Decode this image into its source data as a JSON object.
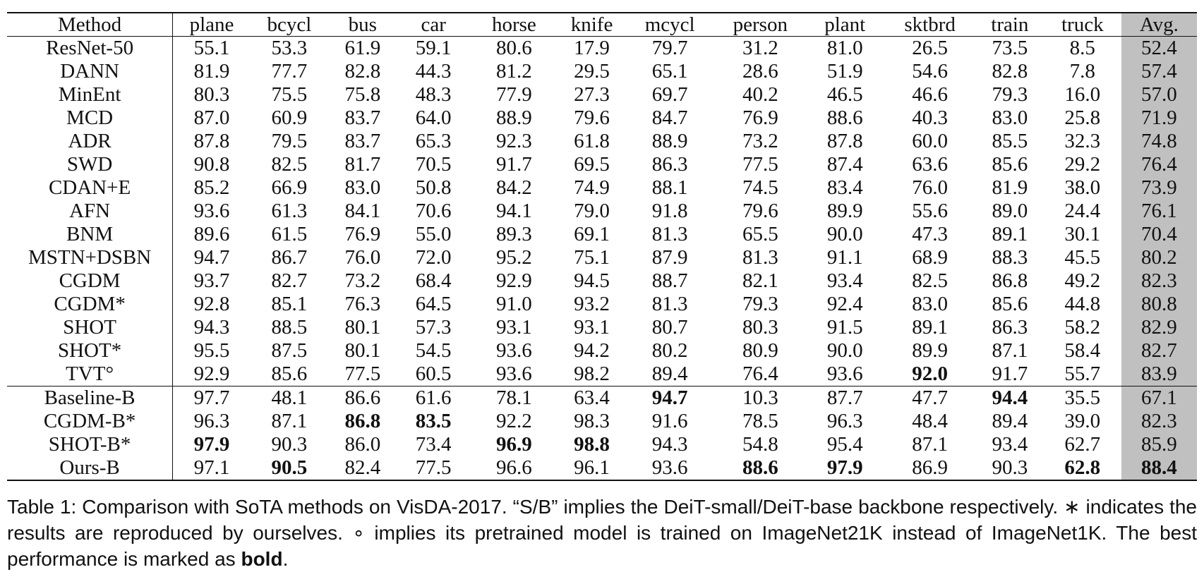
{
  "table": {
    "columns": [
      "Method",
      "plane",
      "bcycl",
      "bus",
      "car",
      "horse",
      "knife",
      "mcycl",
      "person",
      "plant",
      "sktbrd",
      "train",
      "truck",
      "Avg."
    ],
    "groups": [
      {
        "rows": [
          {
            "method": "ResNet-50",
            "values": [
              "55.1",
              "53.3",
              "61.9",
              "59.1",
              "80.6",
              "17.9",
              "79.7",
              "31.2",
              "81.0",
              "26.5",
              "73.5",
              "8.5",
              "52.4"
            ],
            "bold": []
          },
          {
            "method": "DANN",
            "values": [
              "81.9",
              "77.7",
              "82.8",
              "44.3",
              "81.2",
              "29.5",
              "65.1",
              "28.6",
              "51.9",
              "54.6",
              "82.8",
              "7.8",
              "57.4"
            ],
            "bold": []
          },
          {
            "method": "MinEnt",
            "values": [
              "80.3",
              "75.5",
              "75.8",
              "48.3",
              "77.9",
              "27.3",
              "69.7",
              "40.2",
              "46.5",
              "46.6",
              "79.3",
              "16.0",
              "57.0"
            ],
            "bold": []
          },
          {
            "method": "MCD",
            "values": [
              "87.0",
              "60.9",
              "83.7",
              "64.0",
              "88.9",
              "79.6",
              "84.7",
              "76.9",
              "88.6",
              "40.3",
              "83.0",
              "25.8",
              "71.9"
            ],
            "bold": []
          },
          {
            "method": "ADR",
            "values": [
              "87.8",
              "79.5",
              "83.7",
              "65.3",
              "92.3",
              "61.8",
              "88.9",
              "73.2",
              "87.8",
              "60.0",
              "85.5",
              "32.3",
              "74.8"
            ],
            "bold": []
          },
          {
            "method": "SWD",
            "values": [
              "90.8",
              "82.5",
              "81.7",
              "70.5",
              "91.7",
              "69.5",
              "86.3",
              "77.5",
              "87.4",
              "63.6",
              "85.6",
              "29.2",
              "76.4"
            ],
            "bold": []
          },
          {
            "method": "CDAN+E",
            "values": [
              "85.2",
              "66.9",
              "83.0",
              "50.8",
              "84.2",
              "74.9",
              "88.1",
              "74.5",
              "83.4",
              "76.0",
              "81.9",
              "38.0",
              "73.9"
            ],
            "bold": []
          },
          {
            "method": "AFN",
            "values": [
              "93.6",
              "61.3",
              "84.1",
              "70.6",
              "94.1",
              "79.0",
              "91.8",
              "79.6",
              "89.9",
              "55.6",
              "89.0",
              "24.4",
              "76.1"
            ],
            "bold": []
          },
          {
            "method": "BNM",
            "values": [
              "89.6",
              "61.5",
              "76.9",
              "55.0",
              "89.3",
              "69.1",
              "81.3",
              "65.5",
              "90.0",
              "47.3",
              "89.1",
              "30.1",
              "70.4"
            ],
            "bold": []
          },
          {
            "method": "MSTN+DSBN",
            "values": [
              "94.7",
              "86.7",
              "76.0",
              "72.0",
              "95.2",
              "75.1",
              "87.9",
              "81.3",
              "91.1",
              "68.9",
              "88.3",
              "45.5",
              "80.2"
            ],
            "bold": []
          },
          {
            "method": "CGDM",
            "values": [
              "93.7",
              "82.7",
              "73.2",
              "68.4",
              "92.9",
              "94.5",
              "88.7",
              "82.1",
              "93.4",
              "82.5",
              "86.8",
              "49.2",
              "82.3"
            ],
            "bold": []
          },
          {
            "method": "CGDM*",
            "values": [
              "92.8",
              "85.1",
              "76.3",
              "64.5",
              "91.0",
              "93.2",
              "81.3",
              "79.3",
              "92.4",
              "83.0",
              "85.6",
              "44.8",
              "80.8"
            ],
            "bold": []
          },
          {
            "method": "SHOT",
            "values": [
              "94.3",
              "88.5",
              "80.1",
              "57.3",
              "93.1",
              "93.1",
              "80.7",
              "80.3",
              "91.5",
              "89.1",
              "86.3",
              "58.2",
              "82.9"
            ],
            "bold": []
          },
          {
            "method": "SHOT*",
            "values": [
              "95.5",
              "87.5",
              "80.1",
              "54.5",
              "93.6",
              "94.2",
              "80.2",
              "80.9",
              "90.0",
              "89.9",
              "87.1",
              "58.4",
              "82.7"
            ],
            "bold": []
          },
          {
            "method": "TVT°",
            "values": [
              "92.9",
              "85.6",
              "77.5",
              "60.5",
              "93.6",
              "98.2",
              "89.4",
              "76.4",
              "93.6",
              "92.0",
              "91.7",
              "55.7",
              "83.9"
            ],
            "bold": [
              9
            ]
          }
        ]
      },
      {
        "rows": [
          {
            "method": "Baseline-B",
            "values": [
              "97.7",
              "48.1",
              "86.6",
              "61.6",
              "78.1",
              "63.4",
              "94.7",
              "10.3",
              "87.7",
              "47.7",
              "94.4",
              "35.5",
              "67.1"
            ],
            "bold": [
              6,
              10
            ]
          },
          {
            "method": "CGDM-B*",
            "values": [
              "96.3",
              "87.1",
              "86.8",
              "83.5",
              "92.2",
              "98.3",
              "91.6",
              "78.5",
              "96.3",
              "48.4",
              "89.4",
              "39.0",
              "82.3"
            ],
            "bold": [
              2,
              3
            ]
          },
          {
            "method": "SHOT-B*",
            "values": [
              "97.9",
              "90.3",
              "86.0",
              "73.4",
              "96.9",
              "98.8",
              "94.3",
              "54.8",
              "95.4",
              "87.1",
              "93.4",
              "62.7",
              "85.9"
            ],
            "bold": [
              0,
              4,
              5
            ]
          },
          {
            "method": "Ours-B",
            "values": [
              "97.1",
              "90.5",
              "82.4",
              "77.5",
              "96.6",
              "96.1",
              "93.6",
              "88.6",
              "97.9",
              "86.9",
              "90.3",
              "62.8",
              "88.4"
            ],
            "bold": [
              1,
              7,
              8,
              11,
              12
            ]
          }
        ]
      }
    ]
  },
  "caption": {
    "part1": "Table 1: Comparison with SoTA methods on VisDA-2017. “S/B” implies the DeiT-small/DeiT-base backbone respectively. ∗ indicates the results are reproduced by ourselves. ∘ implies its pretrained model is trained on ImageNet21K instead of ImageNet1K. The best performance is marked as ",
    "bold_word": "bold",
    "end": "."
  }
}
